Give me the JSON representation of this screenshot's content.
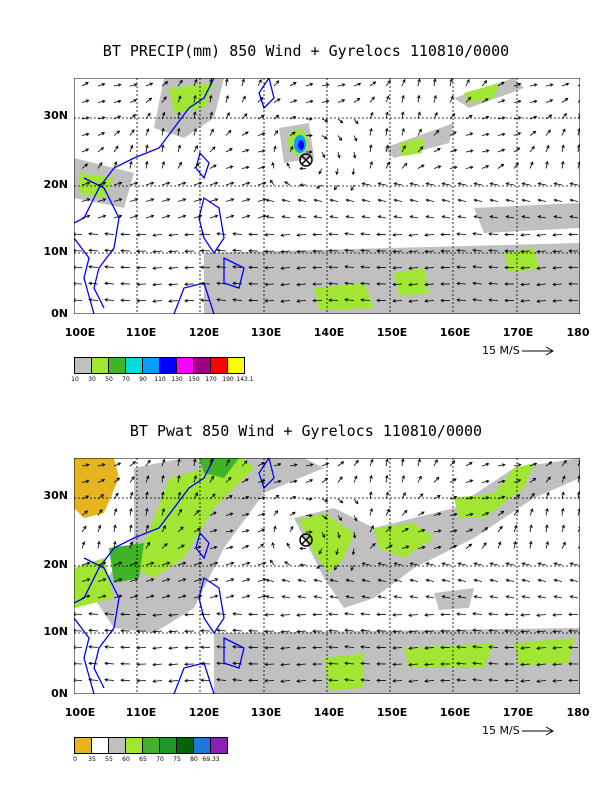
{
  "panel1": {
    "title": "BT PRECIP(mm) 850 Wind + Gyrelocs 110810/0000",
    "lat_labels": [
      "30N",
      "20N",
      "10N",
      "0N"
    ],
    "lon_labels": [
      "100E",
      "110E",
      "120E",
      "130E",
      "140E",
      "150E",
      "160E",
      "170E",
      "180"
    ],
    "scale_label": "15 M/S",
    "legend_colors": [
      "#c0c0c0",
      "#a0e632",
      "#40b428",
      "#00dcdc",
      "#00a0ff",
      "#0000ff",
      "#ff00ff",
      "#a00080",
      "#ff0000",
      "#ffff00"
    ],
    "legend_labels": [
      "10",
      "30",
      "50",
      "70",
      "90",
      "110",
      "130",
      "150",
      "170",
      "190",
      "143.1"
    ]
  },
  "panel2": {
    "title": "BT Pwat 850 Wind + Gyrelocs 110810/0000",
    "lat_labels": [
      "30N",
      "20N",
      "10N",
      "0N"
    ],
    "lon_labels": [
      "100E",
      "110E",
      "120E",
      "130E",
      "140E",
      "150E",
      "160E",
      "170E",
      "180"
    ],
    "scale_label": "15 M/S",
    "legend_colors": [
      "#e6b41e",
      "#ffffff",
      "#c0c0c0",
      "#a0e632",
      "#40b428",
      "#1e9628",
      "#006400",
      "#1e78dc",
      "#8c1eb4"
    ],
    "legend_labels": [
      "0",
      "35",
      "55",
      "60",
      "65",
      "70",
      "75",
      "80",
      "69.33"
    ]
  },
  "colors": {
    "coast": "#0000ff",
    "grid": "#000000",
    "gyre_marker": "#000000"
  },
  "map_extent": {
    "lon": [
      100,
      180
    ],
    "lat": [
      0,
      35
    ]
  },
  "gyre_location": {
    "lon": 136.5,
    "lat": 23.5
  }
}
